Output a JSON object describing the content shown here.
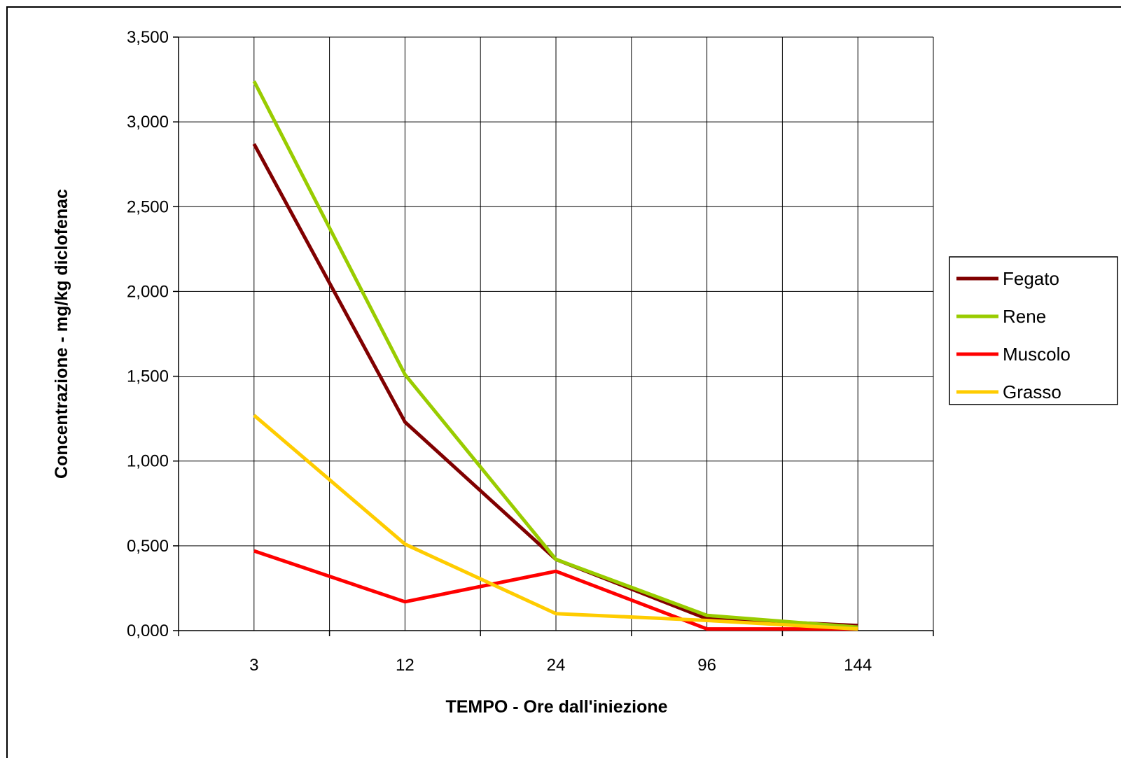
{
  "chart_data": {
    "type": "line",
    "title": "",
    "xlabel": "TEMPO - Ore dall'iniezione",
    "ylabel": "Concentrazione - mg/kg diclofenac",
    "categories": [
      "3",
      "12",
      "24",
      "96",
      "144"
    ],
    "ylim": [
      0,
      3.5
    ],
    "yticks": [
      0,
      0.5,
      1.0,
      1.5,
      2.0,
      2.5,
      3.0,
      3.5
    ],
    "ytick_labels": [
      "0,000",
      "0,500",
      "1,000",
      "1,500",
      "2,000",
      "2,500",
      "3,000",
      "3,500"
    ],
    "grid": true,
    "legend_position": "right",
    "series": [
      {
        "name": "Fegato",
        "color": "#800000",
        "values": [
          2.87,
          1.23,
          0.42,
          0.07,
          0.03
        ]
      },
      {
        "name": "Rene",
        "color": "#99CC00",
        "values": [
          3.24,
          1.51,
          0.42,
          0.09,
          0.02
        ]
      },
      {
        "name": "Muscolo",
        "color": "#FF0000",
        "values": [
          0.47,
          0.17,
          0.35,
          0.01,
          0.01
        ]
      },
      {
        "name": "Grasso",
        "color": "#FFCC00",
        "values": [
          1.27,
          0.51,
          0.1,
          0.06,
          0.01
        ]
      }
    ]
  }
}
